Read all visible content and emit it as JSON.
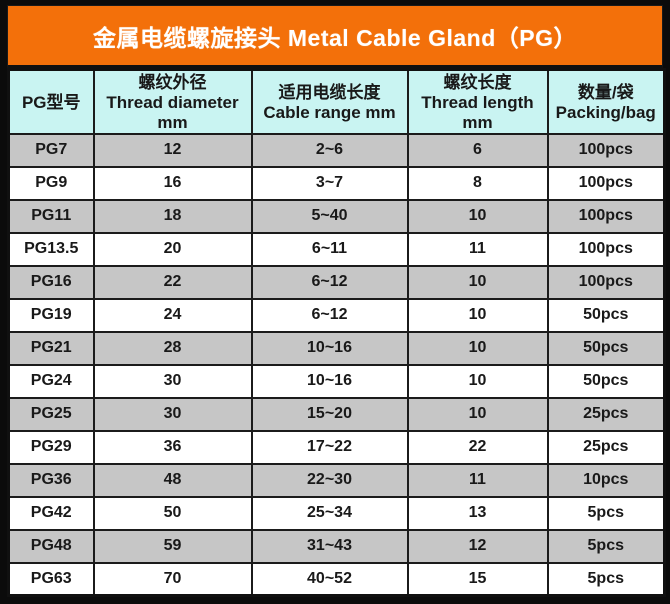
{
  "title": "金属电缆螺旋接头 Metal Cable Gland（PG）",
  "table": {
    "column_keys": [
      "pg-model",
      "thread-diameter",
      "cable-range",
      "thread-length",
      "packing"
    ],
    "headers": [
      {
        "lines": [
          "PG型号"
        ]
      },
      {
        "lines": [
          "螺纹外径",
          "Thread diameter",
          "mm"
        ]
      },
      {
        "lines": [
          "适用电缆长度",
          "Cable range mm"
        ]
      },
      {
        "lines": [
          "螺纹长度",
          "Thread length mm"
        ]
      },
      {
        "lines": [
          "数量/袋",
          "Packing/bag"
        ]
      }
    ],
    "rows": [
      [
        "PG7",
        "12",
        "2~6",
        "6",
        "100pcs"
      ],
      [
        "PG9",
        "16",
        "3~7",
        "8",
        "100pcs"
      ],
      [
        "PG11",
        "18",
        "5~40",
        "10",
        "100pcs"
      ],
      [
        "PG13.5",
        "20",
        "6~11",
        "11",
        "100pcs"
      ],
      [
        "PG16",
        "22",
        "6~12",
        "10",
        "100pcs"
      ],
      [
        "PG19",
        "24",
        "6~12",
        "10",
        "50pcs"
      ],
      [
        "PG21",
        "28",
        "10~16",
        "10",
        "50pcs"
      ],
      [
        "PG24",
        "30",
        "10~16",
        "10",
        "50pcs"
      ],
      [
        "PG25",
        "30",
        "15~20",
        "10",
        "25pcs"
      ],
      [
        "PG29",
        "36",
        "17~22",
        "22",
        "25pcs"
      ],
      [
        "PG36",
        "48",
        "22~30",
        "11",
        "10pcs"
      ],
      [
        "PG42",
        "50",
        "25~34",
        "13",
        "5pcs"
      ],
      [
        "PG48",
        "59",
        "31~43",
        "12",
        "5pcs"
      ],
      [
        "PG63",
        "70",
        "40~52",
        "15",
        "5pcs"
      ]
    ]
  },
  "colors": {
    "accent_orange": "#F3700A",
    "header_cyan": "#C9F4F2",
    "row_gray": "#C6C6C6",
    "row_white": "#FFFFFF",
    "border_black": "#101010",
    "title_text": "#FFFFFF",
    "cell_text": "#191919"
  }
}
